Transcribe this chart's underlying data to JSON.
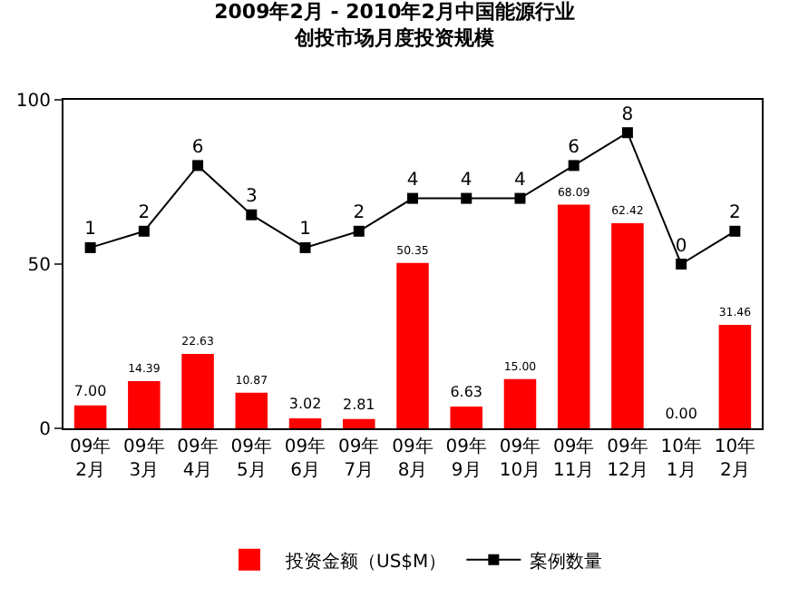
{
  "chart_data": {
    "type": "bar",
    "title": "2009年2月 - 2010年2月中国能源行业",
    "subtitle": "创投市场月度投资规模",
    "categories": [
      "09年\n2月",
      "09年\n3月",
      "09年\n4月",
      "09年\n5月",
      "09年\n6月",
      "09年\n7月",
      "09年\n8月",
      "09年\n9月",
      "09年\n10月",
      "09年\n11月",
      "09年\n12月",
      "10年\n1月",
      "10年\n2月"
    ],
    "series": [
      {
        "name": "投资金额（US$M）",
        "color": "#ff0000",
        "values": [
          7.0,
          14.39,
          22.63,
          10.87,
          3.02,
          2.81,
          50.35,
          6.63,
          15.0,
          68.09,
          62.42,
          0.0,
          31.46
        ],
        "value_labels": [
          "7.00",
          "14.39",
          "22.63",
          "10.87",
          "3.02",
          "2.81",
          "50.35",
          "6.63",
          "15.00",
          "68.09",
          "62.42",
          "0.00",
          "31.46"
        ]
      },
      {
        "name": "案例数量",
        "type": "line",
        "axis": "y2",
        "color": "#000000",
        "values": [
          1,
          2,
          6,
          3,
          1,
          2,
          4,
          4,
          4,
          6,
          8,
          0,
          2
        ],
        "value_labels": [
          "1",
          "2",
          "6",
          "3",
          "1",
          "2",
          "4",
          "4",
          "4",
          "6",
          "8",
          "0",
          "2"
        ]
      }
    ],
    "ylim": [
      0,
      100
    ],
    "yticks": [
      0,
      50,
      100
    ],
    "y2lim": [
      -10,
      10
    ],
    "tick_labels": "xy",
    "marker": "square",
    "line_style": "solid",
    "legend": "bottom",
    "grid": false
  }
}
